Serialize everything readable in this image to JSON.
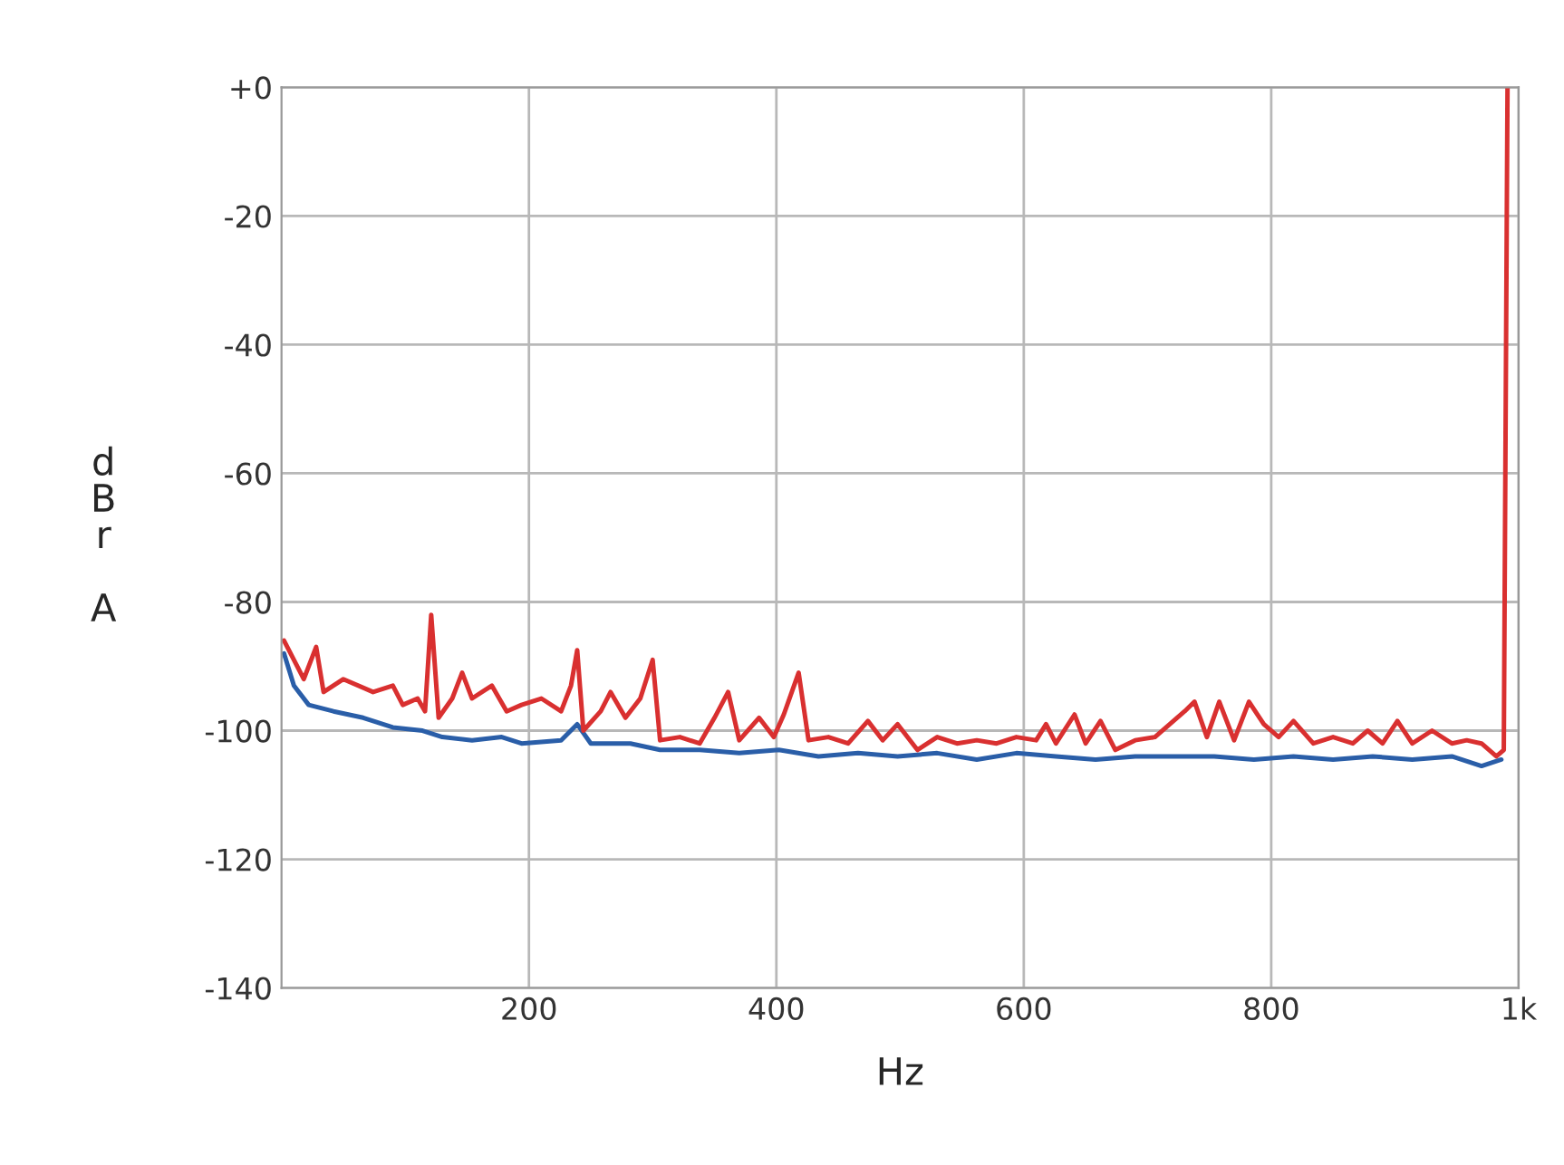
{
  "chart_data": {
    "type": "line",
    "xlabel": "Hz",
    "ylabel": "dBr A",
    "xlim": [
      0,
      1000
    ],
    "ylim": [
      -140,
      0
    ],
    "xticks": [
      200,
      400,
      600,
      800,
      {
        "value": 1000,
        "label": "1k"
      }
    ],
    "yticks": [
      {
        "value": 0,
        "label": "+0"
      },
      -20,
      -40,
      -60,
      -80,
      -100,
      -120,
      -140
    ],
    "grid": true,
    "legend": false,
    "line_style": "solid",
    "marker": "none",
    "series": [
      {
        "color": "#2a5ea8",
        "x": [
          2,
          10,
          22,
          42,
          66,
          90,
          114,
          130,
          154,
          178,
          194,
          226,
          239,
          250,
          282,
          306,
          338,
          370,
          402,
          434,
          466,
          498,
          530,
          562,
          594,
          626,
          658,
          690,
          722,
          754,
          786,
          818,
          850,
          882,
          914,
          946,
          970,
          986
        ],
        "values": [
          -88,
          -93,
          -96,
          -97,
          -98,
          -99.5,
          -100,
          -101,
          -101.5,
          -101,
          -102,
          -101.5,
          -99,
          -102,
          -102,
          -103,
          -103,
          -103.5,
          -103,
          -104,
          -103.5,
          -104,
          -103.5,
          -104.5,
          -103.5,
          -104,
          -104.5,
          -104,
          -104,
          -104,
          -104.5,
          -104,
          -104.5,
          -104,
          -104.5,
          -104,
          -105.5,
          -104.5
        ]
      },
      {
        "color": "#d93030",
        "x": [
          2,
          10,
          18,
          28,
          34,
          50,
          74,
          90,
          98,
          110,
          116,
          121,
          127,
          138,
          146,
          154,
          170,
          182,
          194,
          210,
          226,
          234,
          239,
          244,
          258,
          266,
          278,
          290,
          300,
          306,
          322,
          338,
          350,
          361,
          370,
          386,
          398,
          406,
          418,
          426,
          442,
          458,
          474,
          486,
          498,
          514,
          530,
          546,
          562,
          578,
          594,
          610,
          618,
          626,
          641,
          650,
          662,
          674,
          690,
          706,
          718,
          730,
          738,
          748,
          758,
          770,
          782,
          794,
          806,
          818,
          834,
          850,
          866,
          878,
          890,
          902,
          914,
          930,
          946,
          958,
          970,
          982,
          988,
          991
        ],
        "values": [
          -86,
          -89,
          -92,
          -87,
          -94,
          -92,
          -94,
          -93,
          -96,
          -95,
          -97,
          -82,
          -98,
          -95,
          -91,
          -95,
          -93,
          -97,
          -96,
          -95,
          -97,
          -93,
          -87.5,
          -100,
          -97,
          -94,
          -98,
          -95,
          -89,
          -101.5,
          -101,
          -102,
          -98,
          -94,
          -101.5,
          -98,
          -101,
          -97.5,
          -91,
          -101.5,
          -101,
          -102,
          -98.5,
          -101.5,
          -99,
          -103,
          -101,
          -102,
          -101.5,
          -102,
          -101,
          -101.5,
          -99,
          -102,
          -97.5,
          -102,
          -98.5,
          -103,
          -101.5,
          -101,
          -99,
          -97,
          -95.5,
          -101,
          -95.5,
          -101.5,
          -95.5,
          -99,
          -101,
          -98.5,
          -102,
          -101,
          -102,
          -100,
          -102,
          -98.5,
          -102,
          -100,
          -102,
          -101.5,
          -102,
          -104,
          -103,
          0
        ]
      }
    ]
  }
}
